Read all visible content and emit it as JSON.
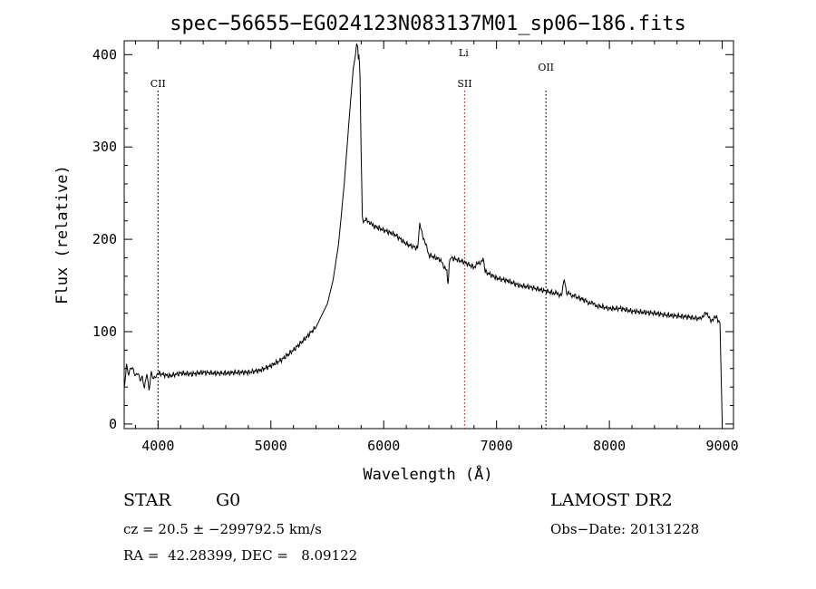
{
  "chart_data": {
    "type": "line",
    "title": "spec−56655−EG024123N083137M01_sp06−186.fits",
    "xlabel": "Wavelength (Å)",
    "ylabel": "Flux (relative)",
    "xlim": [
      3700,
      9100
    ],
    "ylim": [
      -5,
      415
    ],
    "xticks": [
      4000,
      5000,
      6000,
      7000,
      8000,
      9000
    ],
    "yticks": [
      0,
      100,
      200,
      300,
      400
    ],
    "grid": false,
    "line_color": "#000000",
    "series": [
      {
        "x": [
          3700,
          3720,
          3740,
          3760,
          3780,
          3800,
          3820,
          3840,
          3860,
          3880,
          3900,
          3920,
          3940,
          3960,
          3980,
          4000,
          4100,
          4200,
          4300,
          4400,
          4500,
          4600,
          4700,
          4800,
          4900,
          5000,
          5100,
          5200,
          5300,
          5400,
          5500,
          5550,
          5600,
          5650,
          5700,
          5730,
          5750,
          5760,
          5770,
          5775,
          5780,
          5785,
          5790,
          5800,
          5810,
          5820,
          5850,
          5900,
          6000,
          6100,
          6200,
          6300,
          6320,
          6400,
          6500,
          6560,
          6570,
          6580,
          6600,
          6700,
          6800,
          6880,
          6900,
          7000,
          7100,
          7200,
          7300,
          7400,
          7500,
          7580,
          7600,
          7620,
          7700,
          7800,
          7850,
          7900,
          8000,
          8100,
          8200,
          8300,
          8400,
          8500,
          8600,
          8700,
          8800,
          8850,
          8900,
          8950,
          8980,
          9000
        ],
        "y": [
          38,
          65,
          55,
          62,
          58,
          50,
          55,
          48,
          52,
          40,
          56,
          36,
          54,
          48,
          52,
          55,
          52,
          55,
          54,
          56,
          55,
          55,
          56,
          56,
          58,
          63,
          70,
          80,
          92,
          105,
          130,
          155,
          195,
          260,
          340,
          385,
          400,
          412,
          408,
          395,
          400,
          390,
          375,
          295,
          225,
          218,
          222,
          215,
          210,
          205,
          195,
          190,
          215,
          183,
          178,
          165,
          150,
          172,
          180,
          176,
          170,
          178,
          165,
          158,
          155,
          150,
          148,
          145,
          142,
          140,
          158,
          142,
          138,
          133,
          130,
          128,
          125,
          125,
          122,
          121,
          120,
          118,
          117,
          116,
          114,
          120,
          113,
          115,
          110,
          0
        ]
      }
    ],
    "annotations": [
      {
        "label": "CII",
        "x": 4000,
        "line": "dotted",
        "color": "#000000"
      },
      {
        "label": "SII",
        "x": 6717,
        "line": "dotted",
        "color": "#ff0000"
      },
      {
        "label": "Li",
        "x": 6708,
        "line": "none",
        "color": "#000000"
      },
      {
        "label": "OII",
        "x": 7438,
        "line": "dotted",
        "color": "#000000"
      }
    ]
  },
  "info": {
    "object_class": "STAR",
    "subclass": "G0",
    "survey": "LAMOST DR2",
    "cz": "cz = 20.5 ± −299792.5 km/s",
    "obs_date": "Obs−Date: 20131228",
    "coords": "RA =  42.28399, DEC =   8.09122"
  }
}
